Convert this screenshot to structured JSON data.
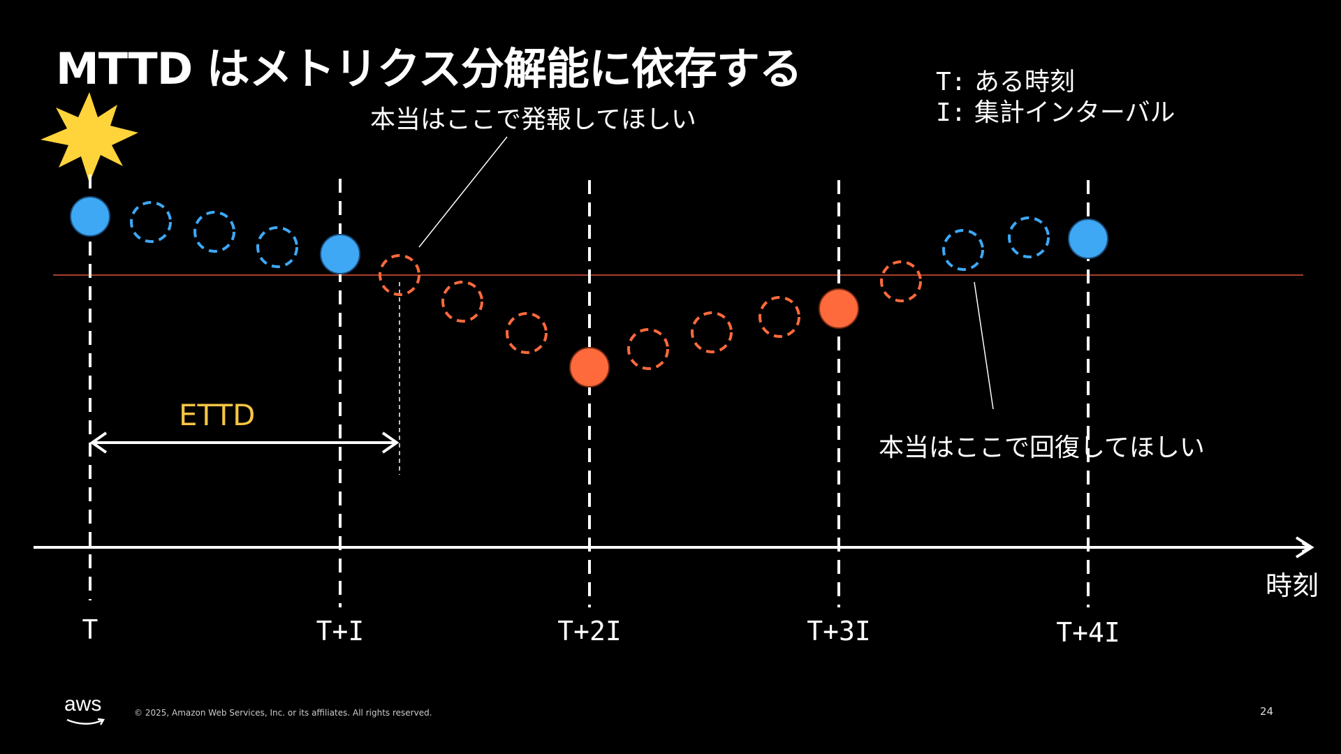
{
  "slide": {
    "title": "MTTD はメトリクス分解能に依存する",
    "legend": [
      {
        "key": "T:",
        "text": "ある時刻"
      },
      {
        "key": "I:",
        "text": "集計インターバル"
      }
    ],
    "annotation_alert": "本当はここで発報してほしい",
    "annotation_recover": "本当はここで回復してほしい",
    "ettd_label": "ETTD",
    "axis_label": "時刻",
    "ticks": [
      "T",
      "T+I",
      "T+2I",
      "T+3I",
      "T+4I"
    ],
    "footer": "© 2025, Amazon Web Services, Inc. or its affiliates. All rights reserved.",
    "page_number": "24",
    "logo_text": "aws"
  },
  "colors": {
    "blue": "#3ea8f5",
    "orange": "#ff6a3d",
    "threshold": "#e0523a",
    "burst": "#ffd43b",
    "ettd": "#f6c445"
  },
  "icons": [
    "burst-icon",
    "aws-logo"
  ]
}
